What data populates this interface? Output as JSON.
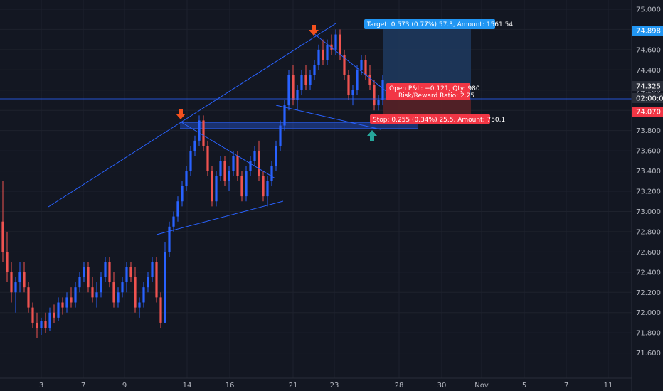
{
  "chart_data": {
    "type": "candlestick",
    "colors": {
      "up": "#2962ff",
      "down": "#ef5350",
      "background": "#131722",
      "grid": "#1e222d",
      "axis_text": "#b2b5be",
      "trend_line": "#2962ff",
      "target": "#2196f3",
      "stop": "#f23645",
      "marker": "#f4511e",
      "buy_marker": "#26a69a"
    },
    "y_axis": {
      "side": "right",
      "ylim": [
        71.5,
        75.1
      ],
      "ticks": [
        "75.000",
        "74.800",
        "74.600",
        "74.400",
        "74.200",
        "74.000",
        "73.800",
        "73.600",
        "73.400",
        "73.200",
        "73.000",
        "72.800",
        "72.600",
        "72.400",
        "72.200",
        "72.000",
        "71.800",
        "71.600"
      ]
    },
    "x_axis": {
      "ticks": [
        "3",
        "7",
        "9",
        "14",
        "16",
        "21",
        "23",
        "28",
        "30",
        "Nov",
        "5",
        "7",
        "11"
      ]
    },
    "grid": true,
    "price_tags": [
      {
        "label": "74.898",
        "value": 74.898,
        "color": "#2196f3"
      },
      {
        "label": "74.325",
        "value": 74.325,
        "color": "#2a2e39"
      },
      {
        "label": "02:00:00",
        "value": 74.19,
        "color": "#2a2e39"
      },
      {
        "label": "74.070",
        "value": 74.07,
        "color": "#f23645"
      }
    ],
    "position": {
      "target_text": "Target: 0.573 (0.77%) 57.3, Amount: 1561.54",
      "pnl_text": "Open P&L: −0.121, Qty: 980",
      "rr_text": "Risk/Reward Ratio: 2.25",
      "stop_text": "Stop: 0.255 (0.34%) 25.5, Amount: 750.1",
      "entry": 74.325,
      "target": 74.898,
      "stop": 74.07
    },
    "series_ohlc": [
      [
        72.9,
        73.3,
        72.5,
        72.6
      ],
      [
        72.6,
        72.8,
        72.3,
        72.4
      ],
      [
        72.4,
        72.5,
        72.1,
        72.2
      ],
      [
        72.2,
        72.35,
        72.0,
        72.3
      ],
      [
        72.3,
        72.5,
        72.2,
        72.4
      ],
      [
        72.4,
        72.5,
        72.2,
        72.25
      ],
      [
        72.25,
        72.3,
        72.0,
        72.05
      ],
      [
        72.05,
        72.1,
        71.85,
        71.9
      ],
      [
        71.9,
        72.0,
        71.75,
        71.85
      ],
      [
        71.85,
        71.95,
        71.78,
        71.92
      ],
      [
        71.92,
        72.0,
        71.8,
        71.85
      ],
      [
        71.85,
        72.05,
        71.82,
        72.0
      ],
      [
        72.0,
        72.08,
        71.9,
        71.95
      ],
      [
        71.95,
        72.15,
        71.92,
        72.1
      ],
      [
        72.1,
        72.15,
        71.98,
        72.05
      ],
      [
        72.05,
        72.2,
        72.0,
        72.15
      ],
      [
        72.15,
        72.25,
        72.05,
        72.1
      ],
      [
        72.1,
        72.3,
        72.05,
        72.25
      ],
      [
        72.25,
        72.4,
        72.2,
        72.35
      ],
      [
        72.35,
        72.5,
        72.3,
        72.45
      ],
      [
        72.45,
        72.5,
        72.2,
        72.25
      ],
      [
        72.25,
        72.35,
        72.1,
        72.15
      ],
      [
        72.15,
        72.3,
        72.05,
        72.2
      ],
      [
        72.2,
        72.4,
        72.15,
        72.35
      ],
      [
        72.35,
        72.55,
        72.3,
        72.5
      ],
      [
        72.5,
        72.55,
        72.25,
        72.3
      ],
      [
        72.3,
        72.4,
        72.05,
        72.1
      ],
      [
        72.1,
        72.25,
        72.05,
        72.2
      ],
      [
        72.2,
        72.35,
        72.15,
        72.3
      ],
      [
        72.3,
        72.5,
        72.2,
        72.45
      ],
      [
        72.45,
        72.5,
        72.3,
        72.35
      ],
      [
        72.35,
        72.45,
        72.0,
        72.05
      ],
      [
        72.05,
        72.15,
        71.95,
        72.1
      ],
      [
        72.1,
        72.3,
        72.05,
        72.25
      ],
      [
        72.25,
        72.4,
        72.2,
        72.35
      ],
      [
        72.35,
        72.55,
        72.3,
        72.5
      ],
      [
        72.5,
        72.55,
        72.1,
        72.15
      ],
      [
        72.15,
        72.2,
        71.85,
        71.9
      ],
      [
        71.9,
        72.7,
        71.9,
        72.6
      ],
      [
        72.6,
        72.9,
        72.55,
        72.85
      ],
      [
        72.85,
        73.0,
        72.8,
        72.95
      ],
      [
        72.95,
        73.15,
        72.9,
        73.1
      ],
      [
        73.1,
        73.3,
        73.05,
        73.25
      ],
      [
        73.25,
        73.45,
        73.2,
        73.4
      ],
      [
        73.4,
        73.65,
        73.35,
        73.6
      ],
      [
        73.6,
        73.75,
        73.55,
        73.7
      ],
      [
        73.7,
        73.95,
        73.65,
        73.9
      ],
      [
        73.9,
        73.95,
        73.6,
        73.65
      ],
      [
        73.65,
        73.7,
        73.35,
        73.4
      ],
      [
        73.4,
        73.45,
        73.05,
        73.1
      ],
      [
        73.1,
        73.4,
        73.05,
        73.35
      ],
      [
        73.35,
        73.55,
        73.3,
        73.5
      ],
      [
        73.5,
        73.55,
        73.25,
        73.3
      ],
      [
        73.3,
        73.45,
        73.2,
        73.4
      ],
      [
        73.4,
        73.6,
        73.35,
        73.55
      ],
      [
        73.55,
        73.6,
        73.3,
        73.35
      ],
      [
        73.35,
        73.4,
        73.1,
        73.15
      ],
      [
        73.15,
        73.45,
        73.1,
        73.4
      ],
      [
        73.4,
        73.55,
        73.35,
        73.5
      ],
      [
        73.5,
        73.65,
        73.45,
        73.6
      ],
      [
        73.6,
        73.7,
        73.3,
        73.35
      ],
      [
        73.35,
        73.4,
        73.1,
        73.15
      ],
      [
        73.15,
        73.35,
        73.05,
        73.3
      ],
      [
        73.3,
        73.5,
        73.25,
        73.45
      ],
      [
        73.45,
        73.7,
        73.4,
        73.65
      ],
      [
        73.65,
        73.9,
        73.6,
        73.85
      ],
      [
        73.85,
        74.1,
        73.8,
        74.05
      ],
      [
        74.05,
        74.4,
        74.0,
        74.35
      ],
      [
        74.35,
        74.45,
        74.05,
        74.1
      ],
      [
        74.1,
        74.25,
        74.0,
        74.2
      ],
      [
        74.2,
        74.4,
        74.15,
        74.35
      ],
      [
        74.35,
        74.45,
        74.2,
        74.25
      ],
      [
        74.25,
        74.4,
        74.2,
        74.35
      ],
      [
        74.35,
        74.5,
        74.3,
        74.45
      ],
      [
        74.45,
        74.65,
        74.4,
        74.6
      ],
      [
        74.6,
        74.7,
        74.45,
        74.5
      ],
      [
        74.5,
        74.7,
        74.45,
        74.65
      ],
      [
        74.65,
        74.75,
        74.55,
        74.6
      ],
      [
        74.6,
        74.8,
        74.55,
        74.75
      ],
      [
        74.75,
        74.8,
        74.5,
        74.55
      ],
      [
        74.55,
        74.6,
        74.3,
        74.35
      ],
      [
        74.35,
        74.4,
        74.1,
        74.15
      ],
      [
        74.15,
        74.25,
        74.05,
        74.2
      ],
      [
        74.2,
        74.45,
        74.15,
        74.4
      ],
      [
        74.4,
        74.55,
        74.35,
        74.5
      ],
      [
        74.5,
        74.55,
        74.3,
        74.35
      ],
      [
        74.35,
        74.45,
        74.2,
        74.25
      ],
      [
        74.25,
        74.3,
        74.0,
        74.05
      ],
      [
        74.05,
        74.15,
        74.0,
        74.1
      ],
      [
        74.1,
        74.35,
        74.05,
        74.3
      ]
    ],
    "trend_lines": [
      {
        "x1": 68,
        "y1": 291,
        "x2": 472,
        "y2": 33
      },
      {
        "x1": 255,
        "y1": 172,
        "x2": 387,
        "y2": 251
      },
      {
        "x1": 220,
        "y1": 330,
        "x2": 398,
        "y2": 283
      },
      {
        "x1": 441,
        "y1": 47,
        "x2": 545,
        "y2": 130
      },
      {
        "x1": 388,
        "y1": 148,
        "x2": 535,
        "y2": 182
      }
    ]
  }
}
